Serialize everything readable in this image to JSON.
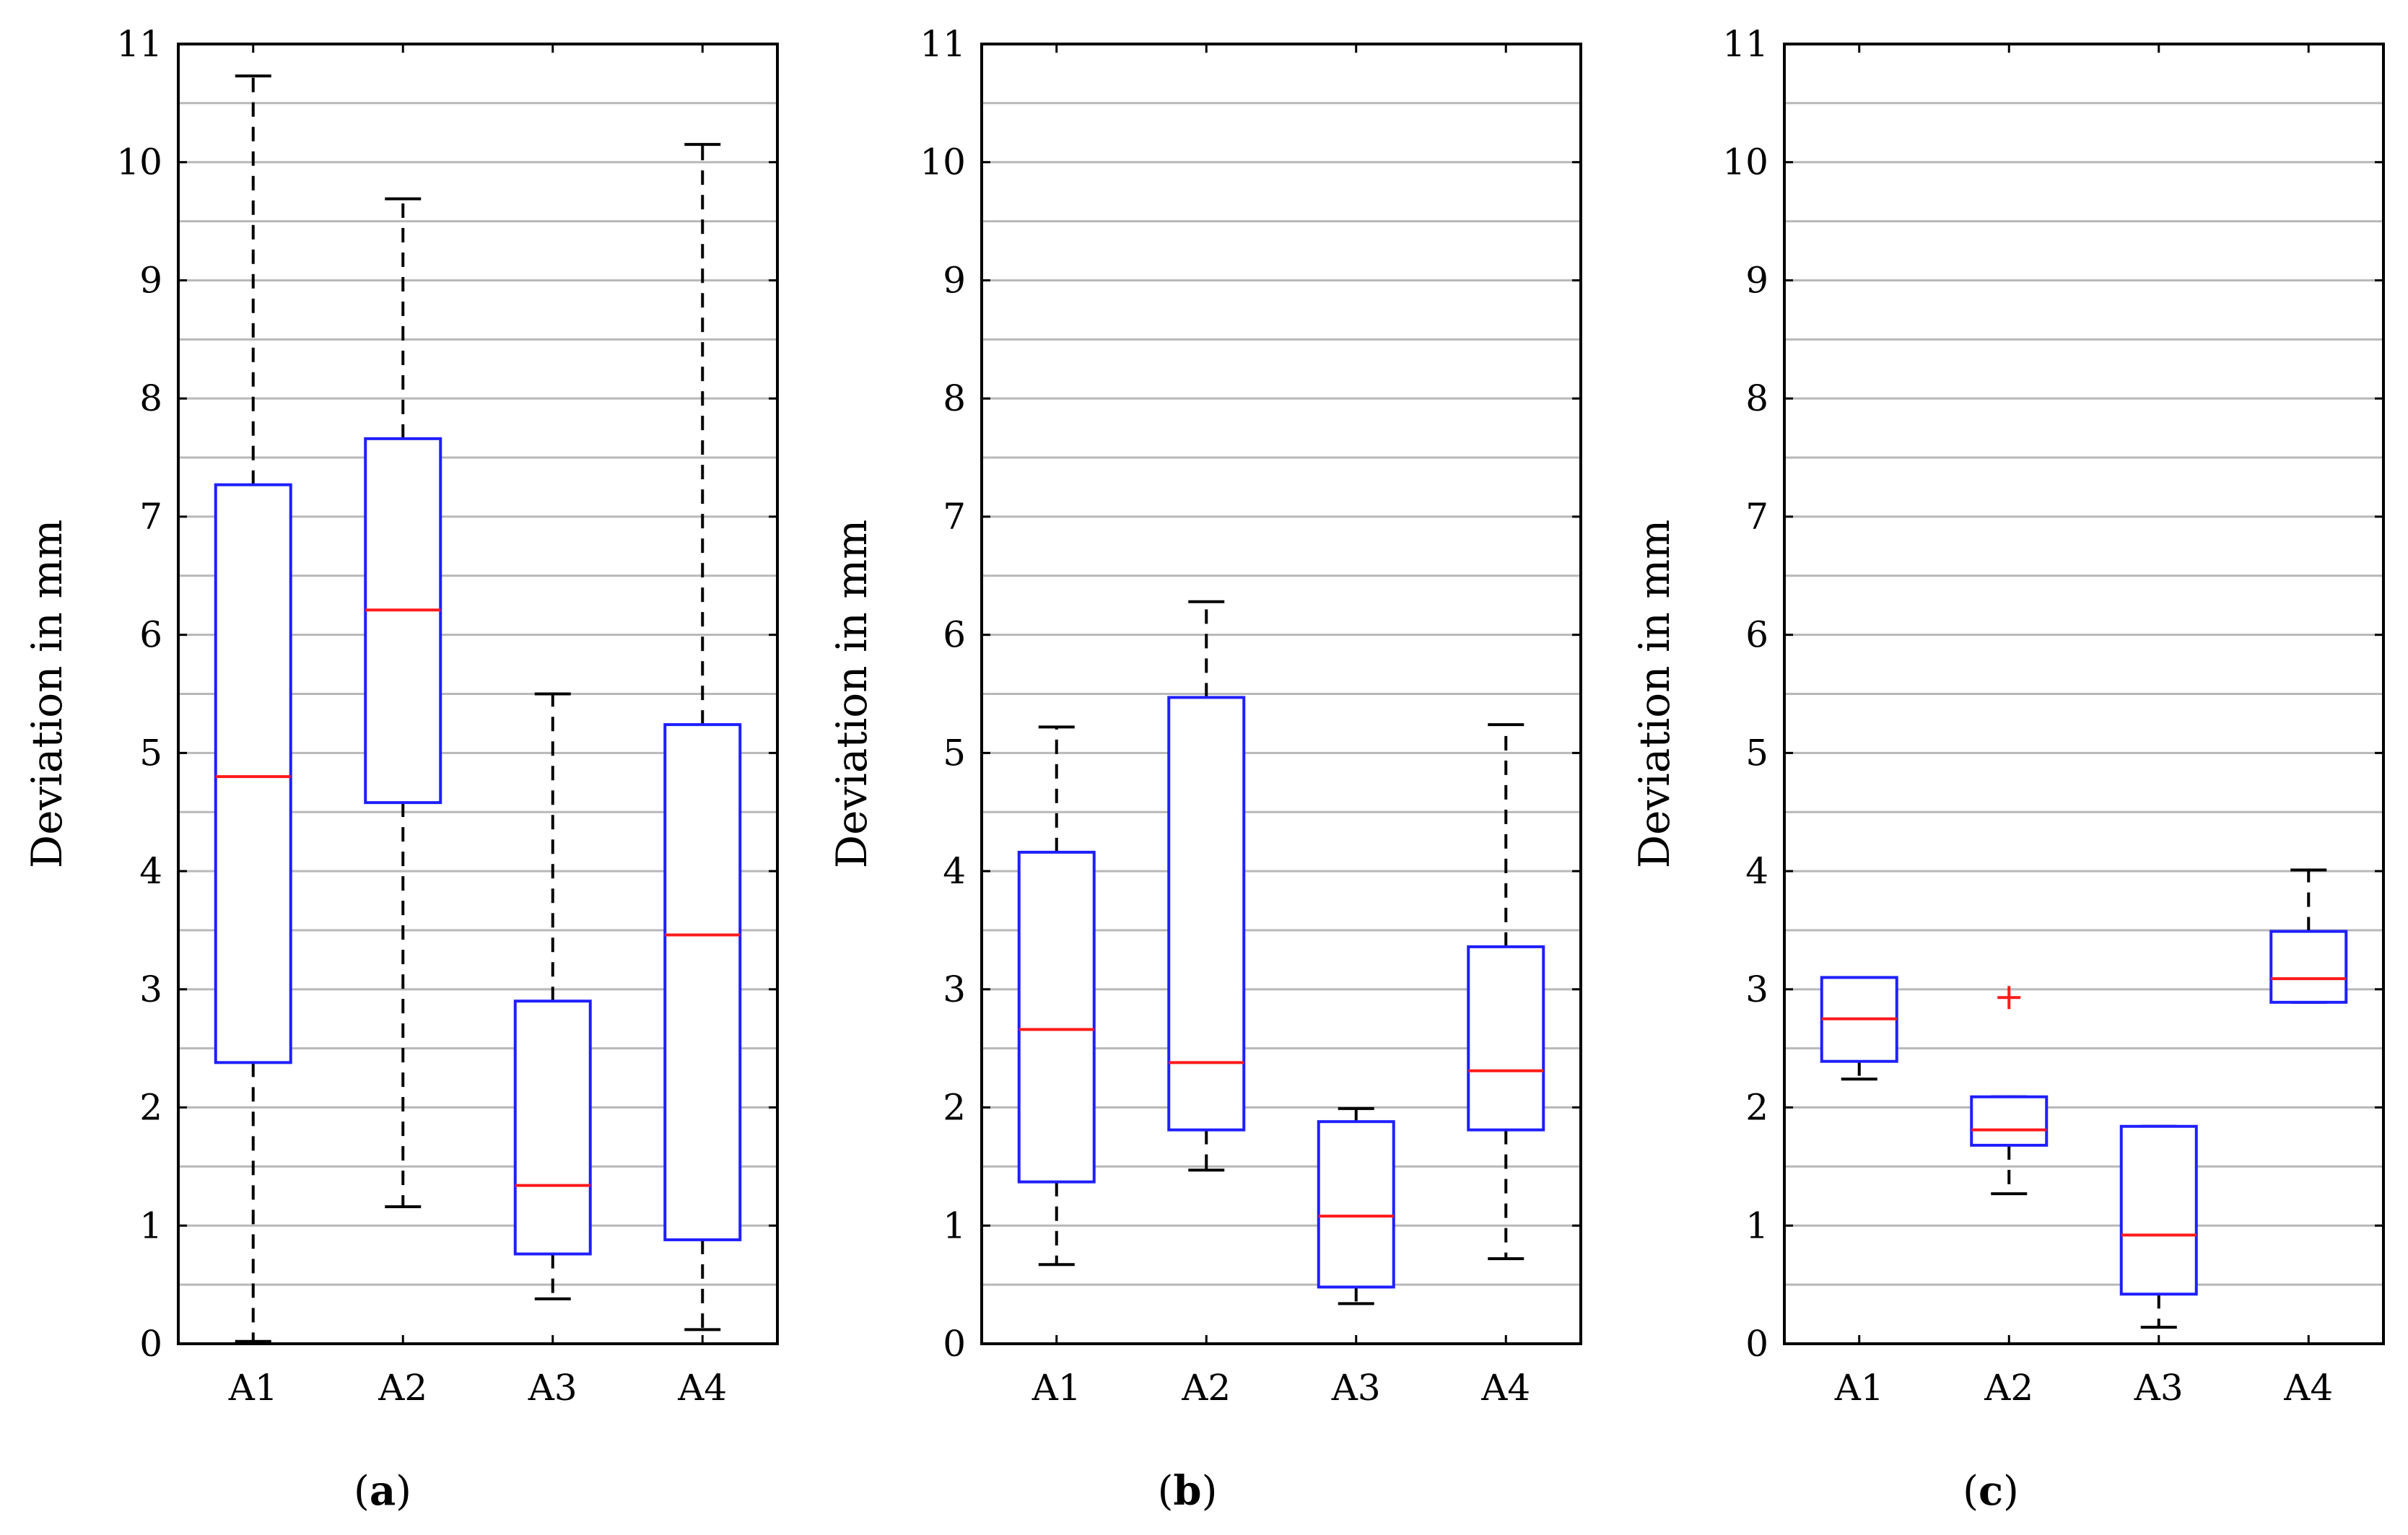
{
  "chart_data": [
    {
      "type": "boxplot",
      "caption_letter": "a",
      "ylabel": "Deviation in mm",
      "ylim": [
        0,
        11
      ],
      "yticks": [
        "0",
        "1",
        "2",
        "3",
        "4",
        "5",
        "6",
        "7",
        "8",
        "9",
        "10",
        "11"
      ],
      "grid": true,
      "categories": [
        "A1",
        "A2",
        "A3",
        "A4"
      ],
      "boxes": [
        {
          "name": "A1",
          "whisker_low": 0.02,
          "q1": 2.38,
          "median": 4.8,
          "q3": 7.27,
          "whisker_high": 10.73,
          "outliers": []
        },
        {
          "name": "A2",
          "whisker_low": 1.16,
          "q1": 4.58,
          "median": 6.21,
          "q3": 7.66,
          "whisker_high": 9.69,
          "outliers": []
        },
        {
          "name": "A3",
          "whisker_low": 0.38,
          "q1": 0.76,
          "median": 1.34,
          "q3": 2.9,
          "whisker_high": 5.5,
          "outliers": []
        },
        {
          "name": "A4",
          "whisker_low": 0.12,
          "q1": 0.88,
          "median": 3.46,
          "q3": 5.24,
          "whisker_high": 10.15,
          "outliers": []
        }
      ]
    },
    {
      "type": "boxplot",
      "caption_letter": "b",
      "ylabel": "Deviation in mm",
      "ylim": [
        0,
        11
      ],
      "yticks": [
        "0",
        "1",
        "2",
        "3",
        "4",
        "5",
        "6",
        "7",
        "8",
        "9",
        "10",
        "11"
      ],
      "grid": true,
      "categories": [
        "A1",
        "A2",
        "A3",
        "A4"
      ],
      "boxes": [
        {
          "name": "A1",
          "whisker_low": 0.67,
          "q1": 1.37,
          "median": 2.66,
          "q3": 4.16,
          "whisker_high": 5.22,
          "outliers": []
        },
        {
          "name": "A2",
          "whisker_low": 1.47,
          "q1": 1.81,
          "median": 2.38,
          "q3": 5.47,
          "whisker_high": 6.28,
          "outliers": []
        },
        {
          "name": "A3",
          "whisker_low": 0.34,
          "q1": 0.48,
          "median": 1.08,
          "q3": 1.88,
          "whisker_high": 1.99,
          "outliers": []
        },
        {
          "name": "A4",
          "whisker_low": 0.72,
          "q1": 1.81,
          "median": 2.31,
          "q3": 3.36,
          "whisker_high": 5.24,
          "outliers": []
        }
      ]
    },
    {
      "type": "boxplot",
      "caption_letter": "c",
      "ylabel": "Deviation in mm",
      "ylim": [
        0,
        11
      ],
      "yticks": [
        "0",
        "1",
        "2",
        "3",
        "4",
        "5",
        "6",
        "7",
        "8",
        "9",
        "10",
        "11"
      ],
      "grid": true,
      "categories": [
        "A1",
        "A2",
        "A3",
        "A4"
      ],
      "boxes": [
        {
          "name": "A1",
          "whisker_low": 2.24,
          "q1": 2.39,
          "median": 2.75,
          "q3": 3.1,
          "whisker_high": 3.1,
          "outliers": []
        },
        {
          "name": "A2",
          "whisker_low": 1.27,
          "q1": 1.68,
          "median": 1.81,
          "q3": 2.09,
          "whisker_high": 2.09,
          "outliers": [
            2.93
          ]
        },
        {
          "name": "A3",
          "whisker_low": 0.14,
          "q1": 0.42,
          "median": 0.92,
          "q3": 1.84,
          "whisker_high": 1.84,
          "outliers": []
        },
        {
          "name": "A4",
          "whisker_low": 2.89,
          "q1": 2.89,
          "median": 3.09,
          "q3": 3.49,
          "whisker_high": 4.01,
          "outliers": []
        }
      ]
    }
  ],
  "colors": {
    "box": "#1f1fff",
    "median": "#ff1a1a",
    "whisker": "#000000",
    "outlier": "#ff1a1a",
    "grid": "#b8b8b8",
    "axis": "#000000"
  }
}
